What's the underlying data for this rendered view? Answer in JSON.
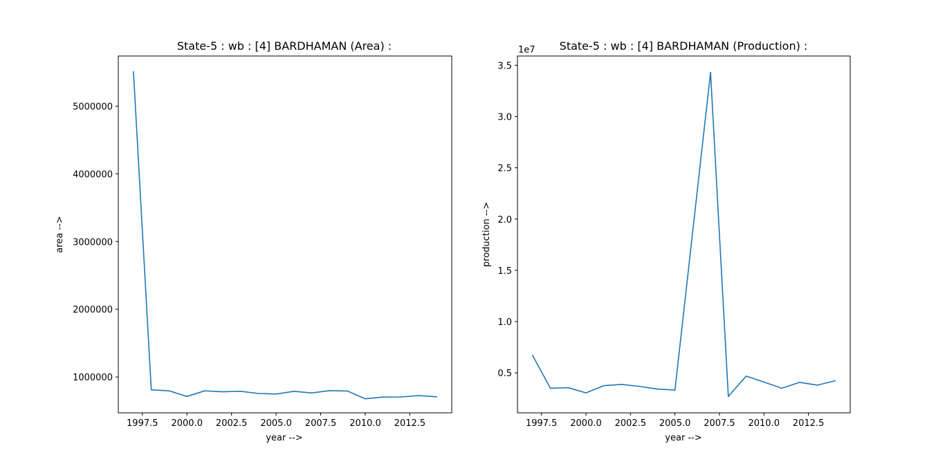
{
  "figure": {
    "background": "#ffffff",
    "line_color": "#1f77b4"
  },
  "chart_data": [
    {
      "type": "line",
      "title": "State-5 : wb : [4] BARDHAMAN (Area) :",
      "xlabel": "year -->",
      "ylabel": "area -->",
      "x": [
        1997,
        1998,
        1999,
        2000,
        2001,
        2002,
        2003,
        2004,
        2005,
        2006,
        2007,
        2008,
        2009,
        2010,
        2011,
        2012,
        2013,
        2014
      ],
      "series": [
        {
          "values": [
            5510000,
            810000,
            795000,
            712000,
            795000,
            781000,
            789000,
            756000,
            748000,
            787000,
            764000,
            797000,
            792000,
            677000,
            703000,
            705000,
            725000,
            707000
          ]
        }
      ],
      "xlim": [
        1996.15,
        2014.85
      ],
      "ylim": [
        470000,
        5740000
      ],
      "xticks": [
        1997.5,
        2000.0,
        2002.5,
        2005.0,
        2007.5,
        2010.0,
        2012.5
      ],
      "xtick_labels": [
        "1997.5",
        "2000.0",
        "2002.5",
        "2005.0",
        "2007.5",
        "2010.0",
        "2012.5"
      ],
      "yticks": [
        1000000,
        2000000,
        3000000,
        4000000,
        5000000
      ],
      "ytick_labels": [
        "1000000",
        "2000000",
        "3000000",
        "4000000",
        "5000000"
      ],
      "y_offset_label": "",
      "grid": false,
      "legend": "none"
    },
    {
      "type": "line",
      "title": "State-5 : wb : [4] BARDHAMAN (Production) :",
      "xlabel": "year -->",
      "ylabel": "production -->",
      "x": [
        1997,
        1998,
        1999,
        2000,
        2001,
        2002,
        2003,
        2004,
        2005,
        2006,
        2007,
        2008,
        2009,
        2010,
        2011,
        2012,
        2013,
        2014
      ],
      "series": [
        {
          "values": [
            6700000,
            3500000,
            3550000,
            3050000,
            3750000,
            3870000,
            3680000,
            3420000,
            3320000,
            18800000,
            34300000,
            2700000,
            4680000,
            4100000,
            3500000,
            4070000,
            3800000,
            4230000
          ]
        }
      ],
      "xlim": [
        1996.15,
        2014.85
      ],
      "ylim": [
        1100000,
        35900000
      ],
      "xticks": [
        1997.5,
        2000.0,
        2002.5,
        2005.0,
        2007.5,
        2010.0,
        2012.5
      ],
      "xtick_labels": [
        "1997.5",
        "2000.0",
        "2002.5",
        "2005.0",
        "2007.5",
        "2010.0",
        "2012.5"
      ],
      "yticks": [
        5000000,
        10000000,
        15000000,
        20000000,
        25000000,
        30000000,
        35000000
      ],
      "ytick_labels": [
        "0.5",
        "1.0",
        "1.5",
        "2.0",
        "2.5",
        "3.0",
        "3.5"
      ],
      "y_offset_label": "1e7",
      "grid": false,
      "legend": "none"
    }
  ]
}
